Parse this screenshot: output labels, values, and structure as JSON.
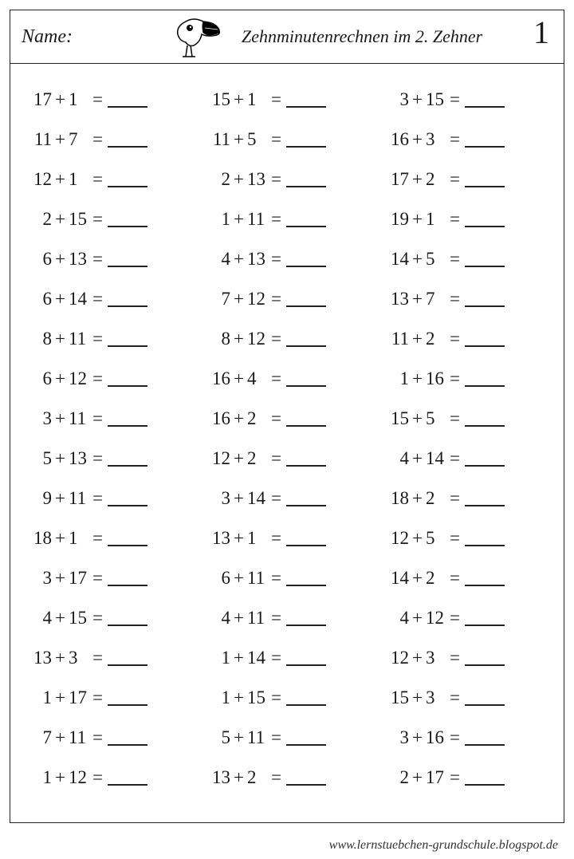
{
  "header": {
    "name_label": "Name:",
    "title": "Zehnminutenrechnen im 2. Zehner",
    "page_number": "1"
  },
  "footer_url": "www.lernstuebchen-grundschule.blogspot.de",
  "worksheet": {
    "font_family": "Comic Sans MS",
    "text_color": "#1a1a1a",
    "border_color": "#222222",
    "background_color": "#ffffff",
    "columns": 3,
    "rows": 18,
    "operator": "+",
    "equals": "=",
    "problems_by_column": [
      [
        {
          "a": "17",
          "b": "1"
        },
        {
          "a": "11",
          "b": "7"
        },
        {
          "a": "12",
          "b": "1"
        },
        {
          "a": "2",
          "b": "15"
        },
        {
          "a": "6",
          "b": "13"
        },
        {
          "a": "6",
          "b": "14"
        },
        {
          "a": "8",
          "b": "11"
        },
        {
          "a": "6",
          "b": "12"
        },
        {
          "a": "3",
          "b": "11"
        },
        {
          "a": "5",
          "b": "13"
        },
        {
          "a": "9",
          "b": "11"
        },
        {
          "a": "18",
          "b": "1"
        },
        {
          "a": "3",
          "b": "17"
        },
        {
          "a": "4",
          "b": "15"
        },
        {
          "a": "13",
          "b": "3"
        },
        {
          "a": "1",
          "b": "17"
        },
        {
          "a": "7",
          "b": "11"
        },
        {
          "a": "1",
          "b": "12"
        }
      ],
      [
        {
          "a": "15",
          "b": "1"
        },
        {
          "a": "11",
          "b": "5"
        },
        {
          "a": "2",
          "b": "13"
        },
        {
          "a": "1",
          "b": "11"
        },
        {
          "a": "4",
          "b": "13"
        },
        {
          "a": "7",
          "b": "12"
        },
        {
          "a": "8",
          "b": "12"
        },
        {
          "a": "16",
          "b": "4"
        },
        {
          "a": "16",
          "b": "2"
        },
        {
          "a": "12",
          "b": "2"
        },
        {
          "a": "3",
          "b": "14"
        },
        {
          "a": "13",
          "b": "1"
        },
        {
          "a": "6",
          "b": "11"
        },
        {
          "a": "4",
          "b": "11"
        },
        {
          "a": "1",
          "b": "14"
        },
        {
          "a": "1",
          "b": "15"
        },
        {
          "a": "5",
          "b": "11"
        },
        {
          "a": "13",
          "b": "2"
        }
      ],
      [
        {
          "a": "3",
          "b": "15"
        },
        {
          "a": "16",
          "b": "3"
        },
        {
          "a": "17",
          "b": "2"
        },
        {
          "a": "19",
          "b": "1"
        },
        {
          "a": "14",
          "b": "5"
        },
        {
          "a": "13",
          "b": "7"
        },
        {
          "a": "11",
          "b": "2"
        },
        {
          "a": "1",
          "b": "16"
        },
        {
          "a": "15",
          "b": "5"
        },
        {
          "a": "4",
          "b": "14"
        },
        {
          "a": "18",
          "b": "2"
        },
        {
          "a": "12",
          "b": "5"
        },
        {
          "a": "14",
          "b": "2"
        },
        {
          "a": "4",
          "b": "12"
        },
        {
          "a": "12",
          "b": "3"
        },
        {
          "a": "15",
          "b": "3"
        },
        {
          "a": "3",
          "b": "16"
        },
        {
          "a": "2",
          "b": "17"
        }
      ]
    ]
  }
}
